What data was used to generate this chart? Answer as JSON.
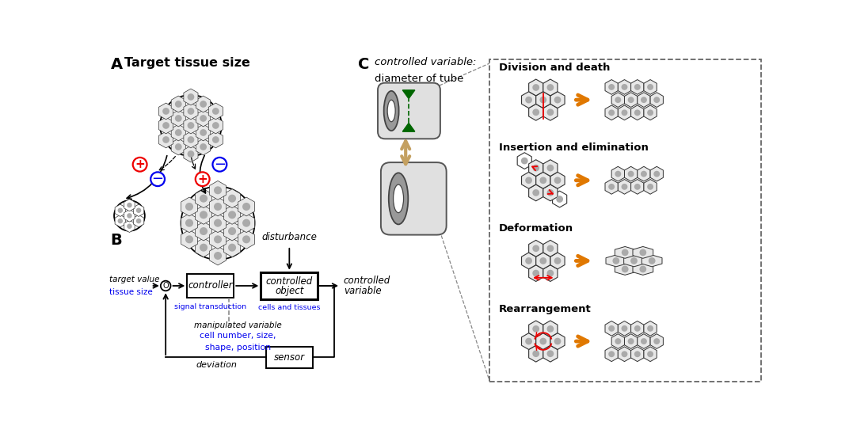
{
  "bg_color": "#ffffff",
  "label_A": "A",
  "label_B": "B",
  "label_C": "C",
  "title_A": "Target tissue size",
  "title_C_line1": "controlled variable:",
  "title_C_line2": "diameter of tube",
  "panel_C_labels": [
    "Division and death",
    "Insertion and elimination",
    "Deformation",
    "Rearrangement"
  ],
  "blue_color": "#0000EE",
  "red_color": "#EE0000",
  "orange_color": "#E07800",
  "green_color": "#006600",
  "gray_color": "#AAAAAA",
  "dark_gray": "#555555",
  "light_gray": "#CCCCCC",
  "hex_fill": "#E8E8E8",
  "hex_fill_white": "#FFFFFF",
  "hex_edge": "#333333",
  "tube_body": "#D8D8D8",
  "tube_dark": "#888888",
  "tube_ec": "#444444",
  "tan_arrow": "#C4A060"
}
